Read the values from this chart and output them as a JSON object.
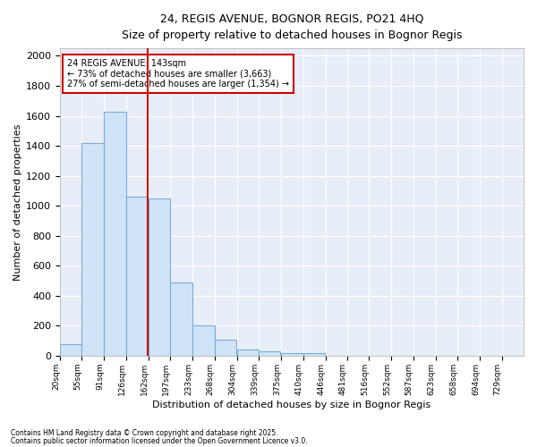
{
  "title_line1": "24, REGIS AVENUE, BOGNOR REGIS, PO21 4HQ",
  "title_line2": "Size of property relative to detached houses in Bognor Regis",
  "xlabel": "Distribution of detached houses by size in Bognor Regis",
  "ylabel": "Number of detached properties",
  "bar_color": "#d0e4f7",
  "bar_edge_color": "#7aacd6",
  "vline_color": "#cc0000",
  "annotation_text": "24 REGIS AVENUE: 143sqm\n← 73% of detached houses are smaller (3,663)\n27% of semi-detached houses are larger (1,354) →",
  "annotation_box_color": "#ffffff",
  "annotation_box_edge_color": "#cc0000",
  "footnote1": "Contains HM Land Registry data © Crown copyright and database right 2025.",
  "footnote2": "Contains public sector information licensed under the Open Government Licence v3.0.",
  "categories": [
    "20sqm",
    "55sqm",
    "91sqm",
    "126sqm",
    "162sqm",
    "197sqm",
    "233sqm",
    "268sqm",
    "304sqm",
    "339sqm",
    "375sqm",
    "410sqm",
    "446sqm",
    "481sqm",
    "516sqm",
    "552sqm",
    "587sqm",
    "623sqm",
    "658sqm",
    "694sqm",
    "729sqm"
  ],
  "values": [
    80,
    1420,
    1630,
    1060,
    1050,
    490,
    205,
    105,
    40,
    30,
    20,
    15,
    0,
    0,
    0,
    0,
    0,
    0,
    0,
    0,
    0
  ],
  "bin_width": 35,
  "ylim": [
    0,
    2050
  ],
  "background_color": "#ffffff",
  "plot_background": "#e8eef8",
  "grid_color": "#ffffff",
  "vline_x": 143.5
}
